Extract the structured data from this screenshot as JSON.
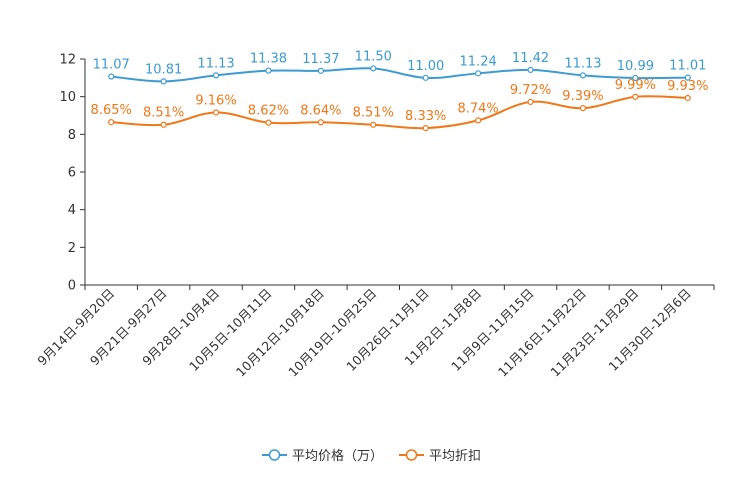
{
  "chart_data": {
    "type": "line",
    "categories": [
      "9月14日-9月20日",
      "9月21日-9月27日",
      "9月28日-10月4日",
      "10月5日-10月11日",
      "10月12日-10月18日",
      "10月19日-10月25日",
      "10月26日-11月1日",
      "11月2日-11月8日",
      "11月9日-11月15日",
      "11月16日-11月22日",
      "11月23日-11月29日",
      "11月30日-12月6日"
    ],
    "series": [
      {
        "name": "平均价格（万）",
        "color": "#3c9bd1",
        "values": [
          11.07,
          10.81,
          11.13,
          11.38,
          11.37,
          11.5,
          11.0,
          11.24,
          11.42,
          11.13,
          10.99,
          11.01
        ],
        "labels": [
          "11.07",
          "10.81",
          "11.13",
          "11.38",
          "11.37",
          "11.50",
          "11.00",
          "11.24",
          "11.42",
          "11.13",
          "10.99",
          "11.01"
        ]
      },
      {
        "name": "平均折扣",
        "color": "#f07818",
        "values": [
          8.65,
          8.51,
          9.16,
          8.62,
          8.64,
          8.51,
          8.33,
          8.74,
          9.72,
          9.39,
          9.99,
          9.93
        ],
        "labels": [
          "8.65%",
          "8.51%",
          "9.16%",
          "8.62%",
          "8.64%",
          "8.51%",
          "8.33%",
          "8.74%",
          "9.72%",
          "9.39%",
          "9.99%",
          "9.93%"
        ]
      }
    ],
    "yticks": [
      0,
      2,
      4,
      6,
      8,
      10,
      12
    ],
    "ylim": [
      0,
      12
    ],
    "title": "",
    "xlabel": "",
    "ylabel": "",
    "legend_position": "bottom-center"
  }
}
